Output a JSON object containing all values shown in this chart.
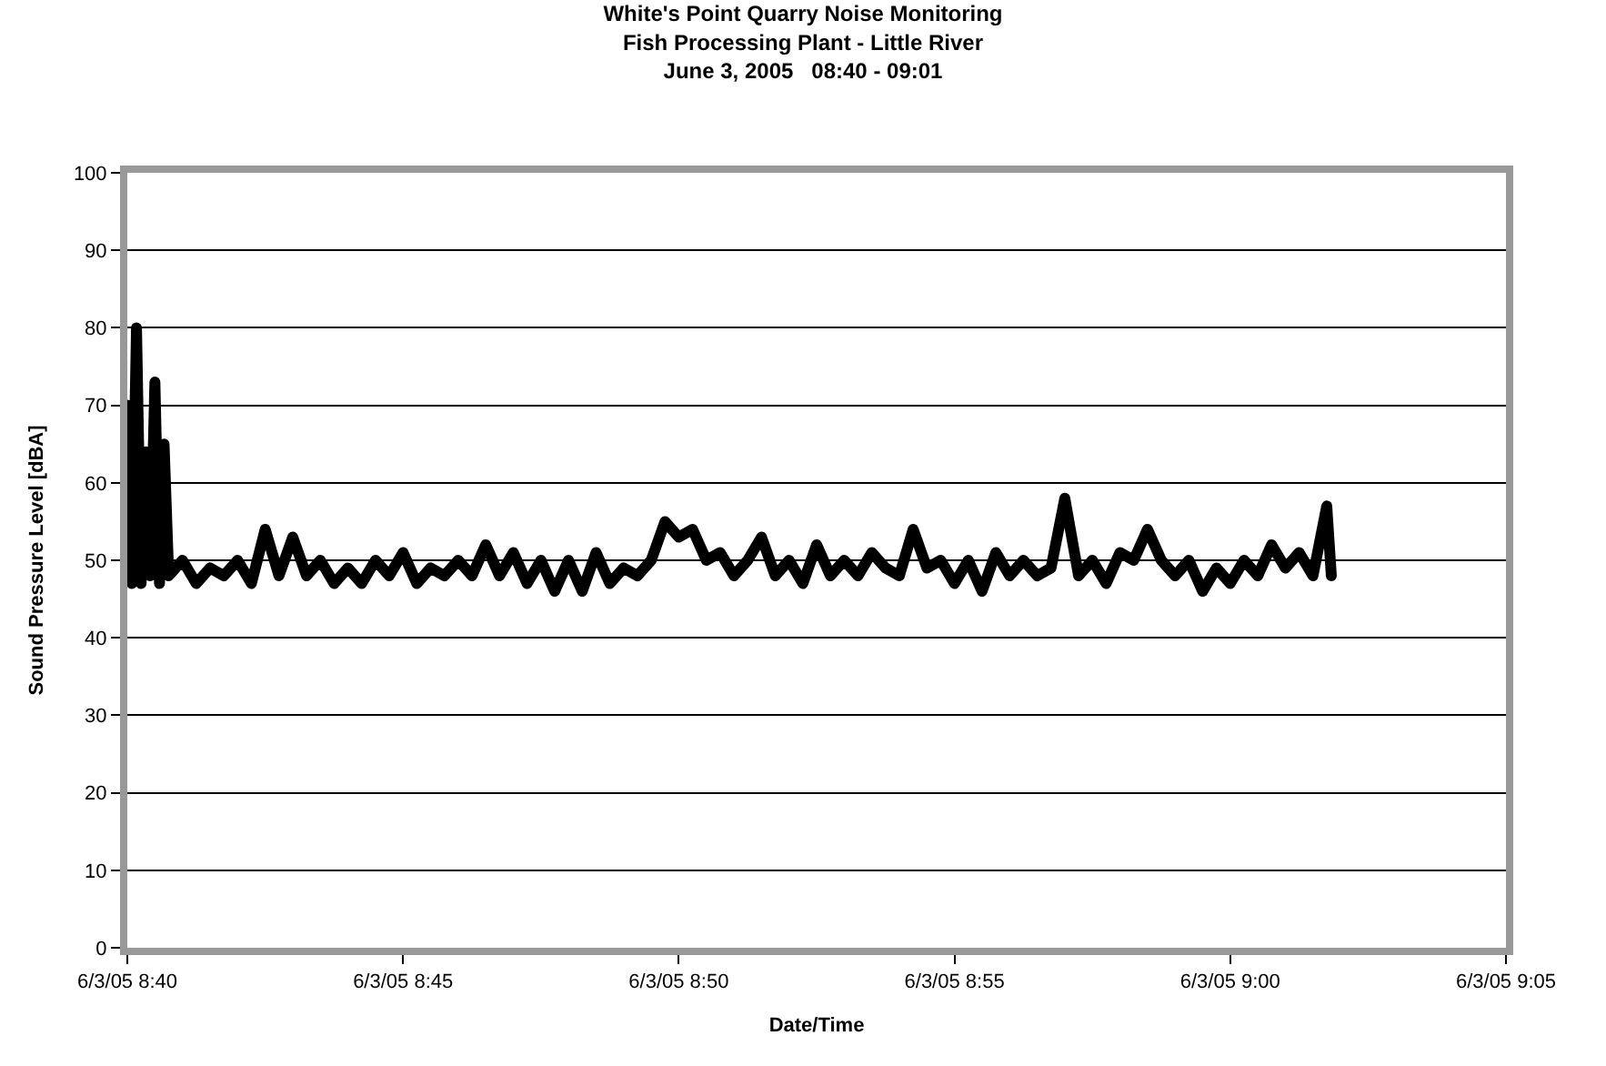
{
  "chart_data": {
    "type": "line",
    "title": "White's Point Quarry Noise Monitoring\nFish Processing Plant - Little River\nJune 3, 2005   08:40 - 09:01",
    "xlabel": "Date/Time",
    "ylabel": "Sound Pressure Level [dBA]",
    "x": [
      "2005-06-03T08:40:00",
      "2005-06-03T08:40:05",
      "2005-06-03T08:40:10",
      "2005-06-03T08:40:15",
      "2005-06-03T08:40:20",
      "2005-06-03T08:40:25",
      "2005-06-03T08:40:30",
      "2005-06-03T08:40:35",
      "2005-06-03T08:40:40",
      "2005-06-03T08:40:45",
      "2005-06-03T08:41:00",
      "2005-06-03T08:41:15",
      "2005-06-03T08:41:30",
      "2005-06-03T08:41:45",
      "2005-06-03T08:42:00",
      "2005-06-03T08:42:15",
      "2005-06-03T08:42:30",
      "2005-06-03T08:42:45",
      "2005-06-03T08:43:00",
      "2005-06-03T08:43:15",
      "2005-06-03T08:43:30",
      "2005-06-03T08:43:45",
      "2005-06-03T08:44:00",
      "2005-06-03T08:44:15",
      "2005-06-03T08:44:30",
      "2005-06-03T08:44:45",
      "2005-06-03T08:45:00",
      "2005-06-03T08:45:15",
      "2005-06-03T08:45:30",
      "2005-06-03T08:45:45",
      "2005-06-03T08:46:00",
      "2005-06-03T08:46:15",
      "2005-06-03T08:46:30",
      "2005-06-03T08:46:45",
      "2005-06-03T08:47:00",
      "2005-06-03T08:47:15",
      "2005-06-03T08:47:30",
      "2005-06-03T08:47:45",
      "2005-06-03T08:48:00",
      "2005-06-03T08:48:15",
      "2005-06-03T08:48:30",
      "2005-06-03T08:48:45",
      "2005-06-03T08:49:00",
      "2005-06-03T08:49:15",
      "2005-06-03T08:49:30",
      "2005-06-03T08:49:45",
      "2005-06-03T08:50:00",
      "2005-06-03T08:50:15",
      "2005-06-03T08:50:30",
      "2005-06-03T08:50:45",
      "2005-06-03T08:51:00",
      "2005-06-03T08:51:15",
      "2005-06-03T08:51:30",
      "2005-06-03T08:51:45",
      "2005-06-03T08:52:00",
      "2005-06-03T08:52:15",
      "2005-06-03T08:52:30",
      "2005-06-03T08:52:45",
      "2005-06-03T08:53:00",
      "2005-06-03T08:53:15",
      "2005-06-03T08:53:30",
      "2005-06-03T08:53:45",
      "2005-06-03T08:54:00",
      "2005-06-03T08:54:15",
      "2005-06-03T08:54:30",
      "2005-06-03T08:54:45",
      "2005-06-03T08:55:00",
      "2005-06-03T08:55:15",
      "2005-06-03T08:55:30",
      "2005-06-03T08:55:45",
      "2005-06-03T08:56:00",
      "2005-06-03T08:56:15",
      "2005-06-03T08:56:30",
      "2005-06-03T08:56:45",
      "2005-06-03T08:57:00",
      "2005-06-03T08:57:15",
      "2005-06-03T08:57:30",
      "2005-06-03T08:57:45",
      "2005-06-03T08:58:00",
      "2005-06-03T08:58:15",
      "2005-06-03T08:58:30",
      "2005-06-03T08:58:45",
      "2005-06-03T08:59:00",
      "2005-06-03T08:59:15",
      "2005-06-03T08:59:30",
      "2005-06-03T08:59:45",
      "2005-06-03T09:00:00",
      "2005-06-03T09:00:15",
      "2005-06-03T09:00:30",
      "2005-06-03T09:00:45",
      "2005-06-03T09:01:00",
      "2005-06-03T09:01:15",
      "2005-06-03T09:01:30",
      "2005-06-03T09:01:45",
      "2005-06-03T09:01:50"
    ],
    "series": [
      {
        "color": "#000000",
        "values": [
          70,
          47,
          80,
          47,
          64,
          48,
          73,
          47,
          65,
          48,
          50,
          47,
          49,
          48,
          50,
          47,
          54,
          48,
          53,
          48,
          50,
          47,
          49,
          47,
          50,
          48,
          51,
          47,
          49,
          48,
          50,
          48,
          52,
          48,
          51,
          47,
          50,
          46,
          50,
          46,
          51,
          47,
          49,
          48,
          50,
          55,
          53,
          54,
          50,
          51,
          48,
          50,
          53,
          48,
          50,
          47,
          52,
          48,
          50,
          48,
          51,
          49,
          48,
          54,
          49,
          50,
          47,
          50,
          46,
          51,
          48,
          50,
          48,
          49,
          58,
          48,
          50,
          47,
          51,
          50,
          54,
          50,
          48,
          50,
          46,
          49,
          47,
          50,
          48,
          52,
          49,
          51,
          48,
          57,
          48
        ]
      }
    ],
    "xlim": [
      "2005-06-03T08:40",
      "2005-06-03T09:05"
    ],
    "xticks": [
      {
        "value": "2005-06-03T08:40",
        "label": "6/3/05 8:40"
      },
      {
        "value": "2005-06-03T08:45",
        "label": "6/3/05 8:45"
      },
      {
        "value": "2005-06-03T08:50",
        "label": "6/3/05 8:50"
      },
      {
        "value": "2005-06-03T08:55",
        "label": "6/3/05 8:55"
      },
      {
        "value": "2005-06-03T09:00",
        "label": "6/3/05 9:00"
      },
      {
        "value": "2005-06-03T09:05",
        "label": "6/3/05 9:05"
      }
    ],
    "ylim": [
      0,
      100
    ],
    "yticks": [
      0,
      10,
      20,
      30,
      40,
      50,
      60,
      70,
      80,
      90,
      100
    ],
    "grid": "y",
    "marker": "none",
    "line_style": "solid"
  }
}
